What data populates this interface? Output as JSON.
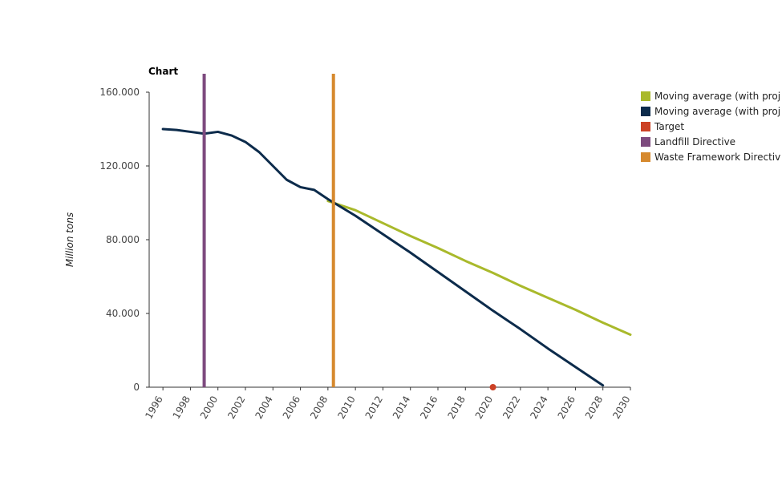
{
  "chart_data": {
    "type": "line",
    "title": "Chart",
    "ylabel": "Million tons",
    "xlabel": "",
    "xlim": [
      1995,
      2030
    ],
    "ylim": [
      0,
      160000
    ],
    "x_ticks": [
      "1996",
      "1998",
      "2000",
      "2002",
      "2004",
      "2006",
      "2008",
      "2010",
      "2012",
      "2014",
      "2016",
      "2018",
      "2020",
      "2022",
      "2024",
      "2026",
      "2028",
      "2030"
    ],
    "y_ticks": [
      {
        "value": 0,
        "label": "0"
      },
      {
        "value": 40000,
        "label": "40.000"
      },
      {
        "value": 80000,
        "label": "80.000"
      },
      {
        "value": 120000,
        "label": "120.000"
      },
      {
        "value": 160000,
        "label": "160.000"
      }
    ],
    "grid": false,
    "legend_position": "right",
    "series": [
      {
        "name": "Moving average (with projection)",
        "legend_label": "Moving average (with proj",
        "color": "#a9b92b",
        "type": "line",
        "x": [
          2008,
          2010,
          2012,
          2014,
          2016,
          2018,
          2020,
          2022,
          2024,
          2026,
          2028,
          2030
        ],
        "y": [
          101000,
          96000,
          89000,
          82000,
          75500,
          68500,
          62000,
          55000,
          48500,
          42000,
          35000,
          28500
        ]
      },
      {
        "name": "Moving average (with projection)",
        "legend_label": "Moving average (with proj",
        "color": "#0c2b4b",
        "type": "line",
        "x": [
          1996,
          1997,
          1998,
          1999,
          2000,
          2001,
          2002,
          2003,
          2004,
          2005,
          2006,
          2007,
          2008,
          2010,
          2012,
          2014,
          2016,
          2018,
          2020,
          2022,
          2024,
          2026,
          2028
        ],
        "y": [
          140000,
          139500,
          138500,
          137500,
          138500,
          136500,
          133000,
          127500,
          120000,
          112500,
          108500,
          107000,
          102000,
          93000,
          83000,
          73000,
          62500,
          52000,
          41500,
          31500,
          21000,
          11000,
          1000
        ]
      },
      {
        "name": "Target",
        "legend_label": "Target",
        "color": "#cc4125",
        "type": "scatter",
        "x": [
          2020
        ],
        "y": [
          0
        ]
      },
      {
        "name": "Landfill Directive",
        "legend_label": "Landfill Directive",
        "color": "#7d4a7e",
        "type": "vline",
        "x": [
          1999
        ]
      },
      {
        "name": "Waste Framework Directive",
        "legend_label": "Waste Framework Directiv",
        "color": "#d6892e",
        "type": "vline",
        "x": [
          2008.4
        ]
      }
    ]
  }
}
